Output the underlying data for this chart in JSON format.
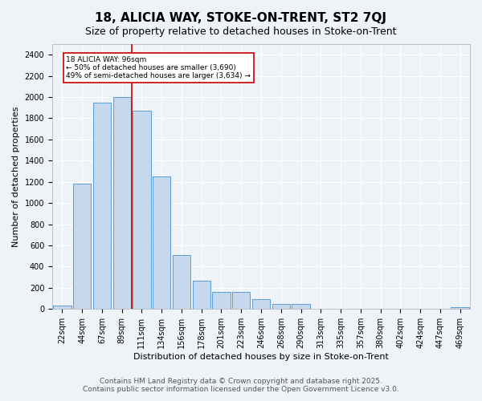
{
  "title1": "18, ALICIA WAY, STOKE-ON-TRENT, ST2 7QJ",
  "title2": "Size of property relative to detached houses in Stoke-on-Trent",
  "xlabel": "Distribution of detached houses by size in Stoke-on-Trent",
  "ylabel": "Number of detached properties",
  "categories": [
    "22sqm",
    "44sqm",
    "67sqm",
    "89sqm",
    "111sqm",
    "134sqm",
    "156sqm",
    "178sqm",
    "201sqm",
    "223sqm",
    "246sqm",
    "268sqm",
    "290sqm",
    "313sqm",
    "335sqm",
    "357sqm",
    "380sqm",
    "402sqm",
    "424sqm",
    "447sqm",
    "469sqm"
  ],
  "values": [
    30,
    1180,
    1950,
    2000,
    1870,
    1250,
    510,
    270,
    160,
    160,
    90,
    50,
    50,
    0,
    0,
    0,
    0,
    0,
    0,
    0,
    20
  ],
  "bar_color": "#c5d8ed",
  "bar_edge_color": "#5b9bd5",
  "annotation_text": "18 ALICIA WAY: 96sqm\n← 50% of detached houses are smaller (3,690)\n49% of semi-detached houses are larger (3,634) →",
  "annotation_box_color": "#ffffff",
  "annotation_box_edge": "#cc0000",
  "red_line_x": 3.5,
  "ylim": [
    0,
    2500
  ],
  "yticks": [
    0,
    200,
    400,
    600,
    800,
    1000,
    1200,
    1400,
    1600,
    1800,
    2000,
    2200,
    2400
  ],
  "footer1": "Contains HM Land Registry data © Crown copyright and database right 2025.",
  "footer2": "Contains public sector information licensed under the Open Government Licence v3.0.",
  "bg_color": "#eef3f8",
  "plot_bg_color": "#eef3f8",
  "grid_color": "#ffffff",
  "title1_fontsize": 11,
  "title2_fontsize": 9,
  "axis_fontsize": 8,
  "tick_fontsize": 7,
  "footer_fontsize": 6.5
}
